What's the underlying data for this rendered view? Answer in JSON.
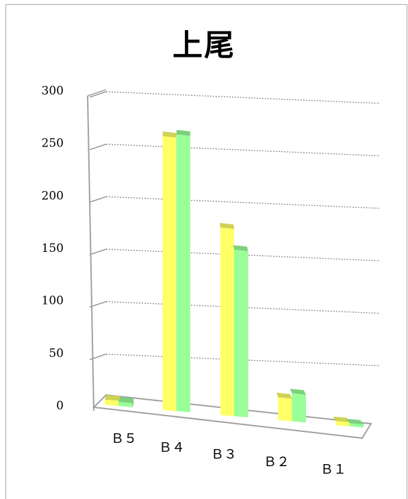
{
  "chart_data": {
    "type": "bar",
    "title": "上尾",
    "categories": [
      "Ｂ５",
      "Ｂ４",
      "Ｂ３",
      "Ｂ２",
      "Ｂ１"
    ],
    "series": [
      {
        "values": [
          5,
          262,
          180,
          22,
          4
        ],
        "color": "#ffff66"
      },
      {
        "values": [
          4,
          265,
          160,
          27,
          3
        ],
        "color": "#99ff99"
      }
    ],
    "y_ticks": [
      "0",
      "50",
      "100",
      "150",
      "200",
      "250",
      "300"
    ],
    "ylim": [
      0,
      300
    ],
    "grid": true,
    "xlabel": "",
    "ylabel": "",
    "view": "3d-perspective"
  }
}
